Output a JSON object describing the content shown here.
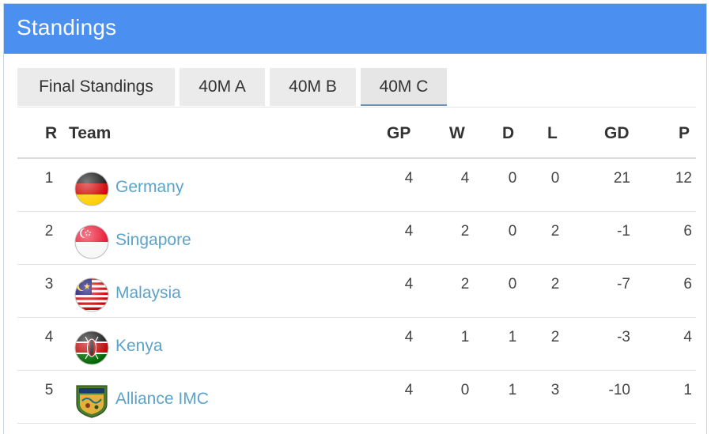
{
  "header": {
    "title": "Standings"
  },
  "tabs": [
    {
      "label": "Final Standings",
      "active": false
    },
    {
      "label": "40M A",
      "active": false
    },
    {
      "label": "40M B",
      "active": false
    },
    {
      "label": "40M C",
      "active": true
    }
  ],
  "columns": {
    "rank": "R",
    "team": "Team",
    "gp": "GP",
    "w": "W",
    "d": "D",
    "l": "L",
    "gd": "GD",
    "p": "P"
  },
  "rows": [
    {
      "rank": "1",
      "team": "Germany",
      "flag_icon": "germany-flag-icon",
      "gp": "4",
      "w": "4",
      "d": "0",
      "l": "0",
      "gd": "21",
      "p": "12"
    },
    {
      "rank": "2",
      "team": "Singapore",
      "flag_icon": "singapore-flag-icon",
      "gp": "4",
      "w": "2",
      "d": "0",
      "l": "2",
      "gd": "-1",
      "p": "6"
    },
    {
      "rank": "3",
      "team": "Malaysia",
      "flag_icon": "malaysia-flag-icon",
      "gp": "4",
      "w": "2",
      "d": "0",
      "l": "2",
      "gd": "-7",
      "p": "6"
    },
    {
      "rank": "4",
      "team": "Kenya",
      "flag_icon": "kenya-flag-icon",
      "gp": "4",
      "w": "1",
      "d": "1",
      "l": "2",
      "gd": "-3",
      "p": "4"
    },
    {
      "rank": "5",
      "team": "Alliance IMC",
      "flag_icon": "alliance-logo-icon",
      "logo_text": "ALLIANCE",
      "gp": "4",
      "w": "0",
      "d": "1",
      "l": "3",
      "gd": "-10",
      "p": "1"
    }
  ],
  "colors": {
    "header": "#4b8ff0",
    "link": "#5ca3c9",
    "tab_bg": "#ebebeb"
  }
}
